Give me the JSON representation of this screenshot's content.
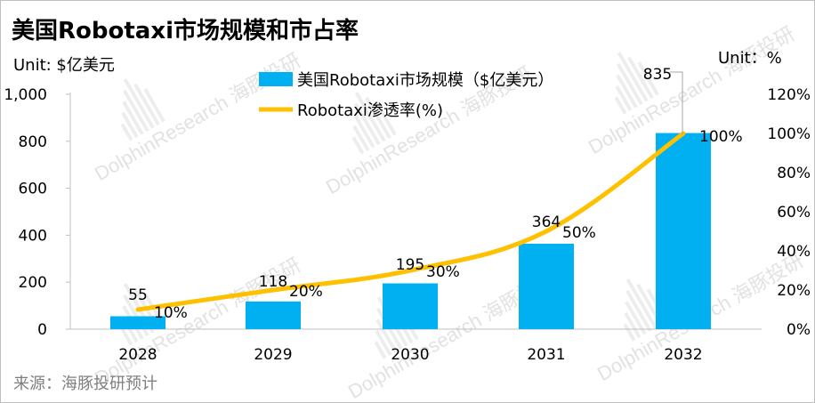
{
  "chart_data": {
    "type": "bar",
    "title": "美国Robotaxi市场规模和市占率",
    "left_unit": "Unit: $亿美元",
    "right_unit": "Unit：%",
    "categories": [
      "2028",
      "2029",
      "2030",
      "2031",
      "2032"
    ],
    "series": [
      {
        "name": "美国Robotaxi市场规模（$亿美元）",
        "type": "bar",
        "axis": "left",
        "color": "#00b0f0",
        "values": [
          55,
          118,
          195,
          364,
          835
        ],
        "labels": [
          "55",
          "118",
          "195",
          "364",
          "835"
        ]
      },
      {
        "name": "Robotaxi渗透率(%)",
        "type": "line",
        "axis": "right",
        "color": "#ffc000",
        "values": [
          10,
          20,
          30,
          50,
          100
        ],
        "labels": [
          "10%",
          "20%",
          "30%",
          "50%",
          "100%"
        ]
      }
    ],
    "y_left": {
      "min": 0,
      "max": 1000,
      "ticks": [
        0,
        200,
        400,
        600,
        800,
        1000
      ],
      "tick_labels": [
        "0",
        "200",
        "400",
        "600",
        "800",
        "1,000"
      ]
    },
    "y_right": {
      "min": 0,
      "max": 120,
      "ticks": [
        0,
        20,
        40,
        60,
        80,
        100,
        120
      ],
      "tick_labels": [
        "0%",
        "20%",
        "40%",
        "60%",
        "80%",
        "100%",
        "120%"
      ]
    },
    "grid": false,
    "legend_position": "top-center",
    "source": "来源：海豚投研预计",
    "watermark": "DolphinResearch 海豚投研"
  }
}
